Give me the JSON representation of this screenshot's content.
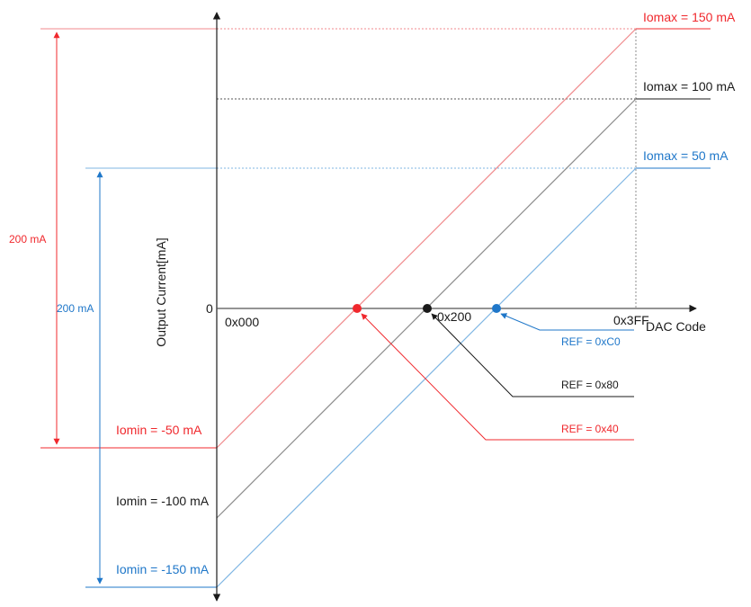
{
  "colors": {
    "red": "#f0282d",
    "black": "#1a1a1a",
    "gray": "#7f7f7f",
    "blue": "#1f77c9",
    "red_line": "#f08a8c",
    "blue_line": "#7fb6e3",
    "gray_line": "#8c8c8c"
  },
  "axes": {
    "y_label": "Output Current[mA]",
    "x_label": "DAC Code",
    "zero_label": "0",
    "x_tick_start": "0x000",
    "x_tick_mid": "0x200",
    "x_tick_end": "0x3FF"
  },
  "lines": {
    "red": {
      "max_label": "Iomax = 150 mA",
      "min_label": "Iomin = -50 mA",
      "ref_label": "REF = 0x40"
    },
    "black": {
      "max_label": "Iomax = 100 mA",
      "min_label": "Iomin = -100 mA",
      "ref_label": "REF = 0x80"
    },
    "blue": {
      "max_label": "Iomax = 50 mA",
      "min_label": "Iomin = -150 mA",
      "ref_label": "REF = 0xC0"
    }
  },
  "spans": {
    "red_span_label": "200 mA",
    "blue_span_label": "200 mA"
  }
}
